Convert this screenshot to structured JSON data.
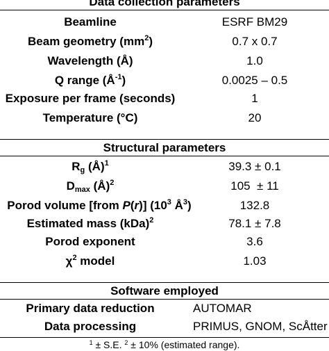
{
  "sections": [
    {
      "title": "Data collection parameters",
      "rows": [
        {
          "label": "Beamline",
          "value": "ESRF BM29"
        },
        {
          "label_main": "Beam geometry (mm",
          "label_sup": "2",
          "label_tail": ")",
          "value": "0.7 x 0.7"
        },
        {
          "label": "Wavelength (Å)",
          "value": "1.0"
        },
        {
          "label_main": "Q range (Å",
          "label_sup": "-1",
          "label_tail": ")",
          "value": "0.0025 – 0.5"
        },
        {
          "label": "Exposure per frame (seconds)",
          "value": "1"
        },
        {
          "label": "Temperature (°C)",
          "value": "20"
        }
      ]
    },
    {
      "title": "Structural parameters",
      "rows": [
        {
          "label_main": "R",
          "label_sub": "g",
          "label_mid": " (Å)",
          "label_sup": "1",
          "value": "39.3 ± 0.1"
        },
        {
          "label_main": "D",
          "label_sub": "max",
          "label_mid": " (Å)",
          "label_sup": "2",
          "value": "105  ± 11"
        },
        {
          "label_a": "Porod volume [from ",
          "label_b": "P",
          "label_c": "(",
          "label_d": "r",
          "label_e": ")] (10",
          "label_sup1": "3",
          "label_f": " Å",
          "label_sup2": "3",
          "label_g": ")",
          "value": "132.8"
        },
        {
          "label_main": "Estimated mass (kDa)",
          "label_sup": "2",
          "value": "78.1 ± 7.8"
        },
        {
          "label": "Porod exponent",
          "value": "3.6"
        },
        {
          "label_main": "χ",
          "label_sup": "2",
          "label_tail": " model",
          "value": "1.03"
        }
      ]
    },
    {
      "title": "Software employed",
      "rows": [
        {
          "label": "Primary data reduction",
          "value": "AUTOMAR"
        },
        {
          "label": "Data processing",
          "value": "PRIMUS, GNOM, ScÅtter"
        }
      ]
    }
  ],
  "footnote": {
    "sup1": "1",
    "text1": " ± S.E. ",
    "sup2": "2",
    "text2": " ± 10% (estimated range)."
  }
}
